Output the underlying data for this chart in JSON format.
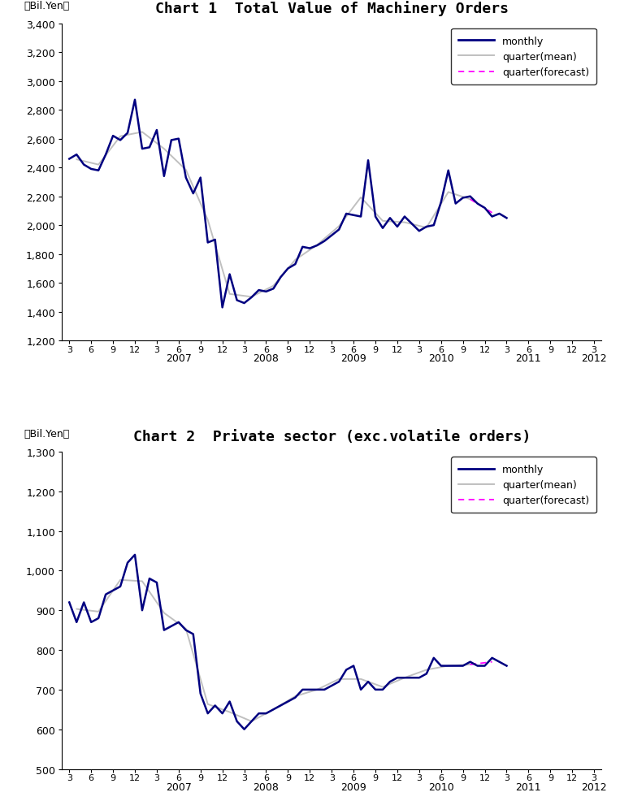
{
  "chart1_title": "Chart 1  Total Value of Machinery Orders",
  "chart2_title": "Chart 2  Private sector (exc.volatile orders)",
  "ylabel": "（Bil.Yen）",
  "chart1_ylim": [
    1200,
    3400
  ],
  "chart1_yticks": [
    1200,
    1400,
    1600,
    1800,
    2000,
    2200,
    2400,
    2600,
    2800,
    3000,
    3200,
    3400
  ],
  "chart2_ylim": [
    500,
    1300
  ],
  "chart2_yticks": [
    500,
    600,
    700,
    800,
    900,
    1000,
    1100,
    1200,
    1300
  ],
  "monthly_color": "#000080",
  "quarter_mean_color": "#C0C0C0",
  "quarter_forecast_color": "#FF00FF",
  "monthly_lw": 1.8,
  "quarter_mean_lw": 1.4,
  "quarter_forecast_lw": 1.3,
  "legend_labels": [
    "monthly",
    "quarter(mean)",
    "quarter(forecast)"
  ],
  "chart1_monthly": [
    2460,
    2490,
    2420,
    2390,
    2380,
    2490,
    2620,
    2590,
    2640,
    2870,
    2530,
    2540,
    2660,
    2340,
    2590,
    2600,
    2330,
    2220,
    2330,
    1880,
    1900,
    1430,
    1660,
    1480,
    1460,
    1500,
    1550,
    1540,
    1560,
    1640,
    1700,
    1730,
    1850,
    1840,
    1860,
    1890,
    1930,
    1970,
    2080,
    2070,
    2060,
    2450,
    2060,
    1980,
    2050,
    1990,
    2060,
    2010,
    1960,
    1990,
    2000,
    2160,
    2380,
    2150,
    2190,
    2200,
    2150,
    2120,
    2060,
    2080,
    2050
  ],
  "chart2_monthly": [
    920,
    870,
    920,
    870,
    880,
    940,
    950,
    960,
    1020,
    1040,
    900,
    980,
    970,
    850,
    860,
    870,
    850,
    840,
    690,
    640,
    660,
    640,
    670,
    620,
    600,
    620,
    640,
    640,
    650,
    660,
    670,
    680,
    700,
    700,
    700,
    700,
    710,
    720,
    750,
    760,
    700,
    720,
    700,
    700,
    720,
    730,
    730,
    730,
    730,
    740,
    780,
    760,
    760,
    760,
    760,
    770,
    760,
    760,
    780,
    770,
    760
  ],
  "bg_color": "#FFFFFF",
  "title_fontsize": 13,
  "tick_fontsize": 9,
  "legend_fontsize": 9
}
